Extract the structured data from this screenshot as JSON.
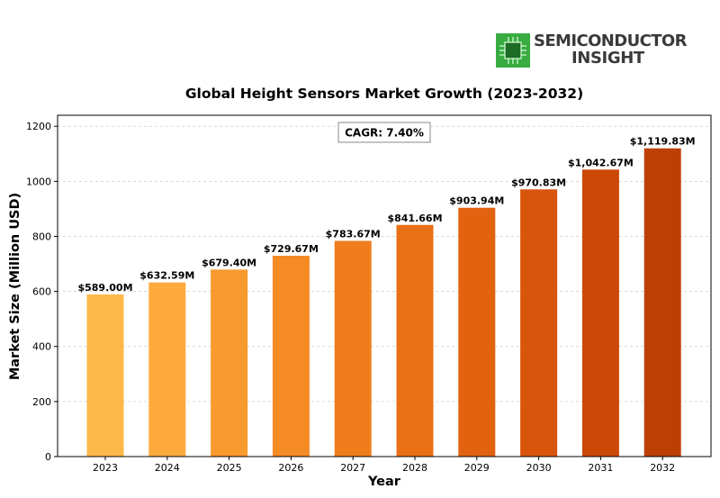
{
  "brand": {
    "line1": "SEMICONDUCTOR",
    "line2": "INSIGHT",
    "icon": "chip-icon"
  },
  "chart_data": {
    "type": "bar",
    "title": "Global Height Sensors Market Growth (2023-2032)",
    "xlabel": "Year",
    "ylabel": "Market Size (Million USD)",
    "categories": [
      "2023",
      "2024",
      "2025",
      "2026",
      "2027",
      "2028",
      "2029",
      "2030",
      "2031",
      "2032"
    ],
    "values": [
      589.0,
      632.59,
      679.4,
      729.67,
      783.67,
      841.66,
      903.94,
      970.83,
      1042.67,
      1119.83
    ],
    "data_labels": [
      "$589.00M",
      "$632.59M",
      "$679.40M",
      "$729.67M",
      "$783.67M",
      "$841.66M",
      "$903.94M",
      "$970.83M",
      "$1,042.67M",
      "$1,119.83M"
    ],
    "colors": [
      "#FDB84A",
      "#FCAA3C",
      "#F99A2E",
      "#F58B24",
      "#F07D1C",
      "#EA7016",
      "#E26210",
      "#D8550B",
      "#CC4806",
      "#BC4004"
    ],
    "ylim": [
      0,
      1240
    ],
    "yticks": [
      0,
      200,
      400,
      600,
      800,
      1000,
      1200
    ],
    "grid": "y-dashed",
    "annotation": "CAGR: 7.40%"
  }
}
